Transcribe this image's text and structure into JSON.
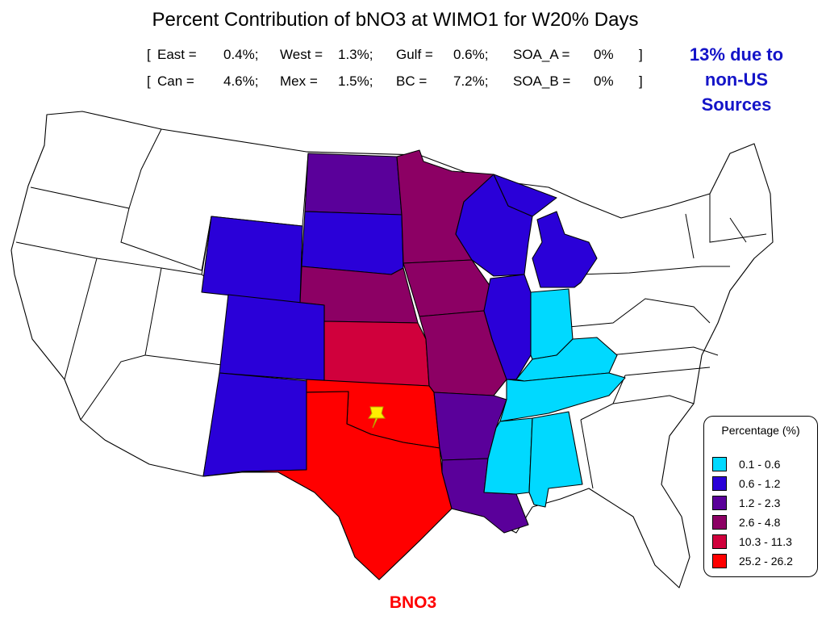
{
  "title": "Percent Contribution of bNO3 at WIMO1 for W20% Days",
  "stats": {
    "row1": [
      {
        "open": "[",
        "key": "East =",
        "val": "0.4%;"
      },
      {
        "key": "West =",
        "val": "1.3%;"
      },
      {
        "key": "Gulf =",
        "val": "0.6%;"
      },
      {
        "key": "SOA_A =",
        "val": "0%",
        "close": "]"
      }
    ],
    "row2": [
      {
        "open": "[",
        "key": "Can =",
        "val": "4.6%;"
      },
      {
        "key": "Mex =",
        "val": "1.5%;"
      },
      {
        "key": "BC =",
        "val": "7.2%;"
      },
      {
        "key": "SOA_B =",
        "val": "0%",
        "close": "]"
      }
    ]
  },
  "note": [
    "13% due to",
    "non-US",
    "Sources"
  ],
  "legend": {
    "title": "Percentage (%)",
    "items": [
      {
        "label": "0.1 - 0.6",
        "color": "#00d9ff"
      },
      {
        "label": "0.6 - 1.2",
        "color": "#2a00d8"
      },
      {
        "label": "1.2 - 2.3",
        "color": "#5a009a"
      },
      {
        "label": "2.6 - 4.8",
        "color": "#8c0064"
      },
      {
        "label": "10.3 - 11.3",
        "color": "#d0003c"
      },
      {
        "label": "25.2 - 26.2",
        "color": "#ff0000"
      }
    ]
  },
  "caption": "BNO3",
  "receptor": {
    "name": "WIMO1",
    "marker_color": "#ffee00",
    "icon": "pushpin-icon"
  },
  "states": [
    {
      "name": "Oklahoma",
      "bin": 5
    },
    {
      "name": "Texas",
      "bin": 5
    },
    {
      "name": "Kansas",
      "bin": 4
    },
    {
      "name": "Minnesota",
      "bin": 3
    },
    {
      "name": "Iowa",
      "bin": 3
    },
    {
      "name": "Nebraska",
      "bin": 3
    },
    {
      "name": "Missouri",
      "bin": 3
    },
    {
      "name": "North Dakota",
      "bin": 2
    },
    {
      "name": "Arkansas",
      "bin": 2
    },
    {
      "name": "Louisiana",
      "bin": 2
    },
    {
      "name": "Wyoming",
      "bin": 1
    },
    {
      "name": "South Dakota",
      "bin": 1
    },
    {
      "name": "Colorado",
      "bin": 1
    },
    {
      "name": "New Mexico",
      "bin": 1
    },
    {
      "name": "Wisconsin",
      "bin": 1
    },
    {
      "name": "Michigan",
      "bin": 1
    },
    {
      "name": "Illinois",
      "bin": 1
    },
    {
      "name": "Indiana",
      "bin": 0
    },
    {
      "name": "Kentucky",
      "bin": 0
    },
    {
      "name": "Tennessee",
      "bin": 0
    },
    {
      "name": "Mississippi",
      "bin": 0
    },
    {
      "name": "Alabama",
      "bin": 0
    }
  ],
  "background_color": "#ffffff",
  "state_outline_color": "#000000"
}
